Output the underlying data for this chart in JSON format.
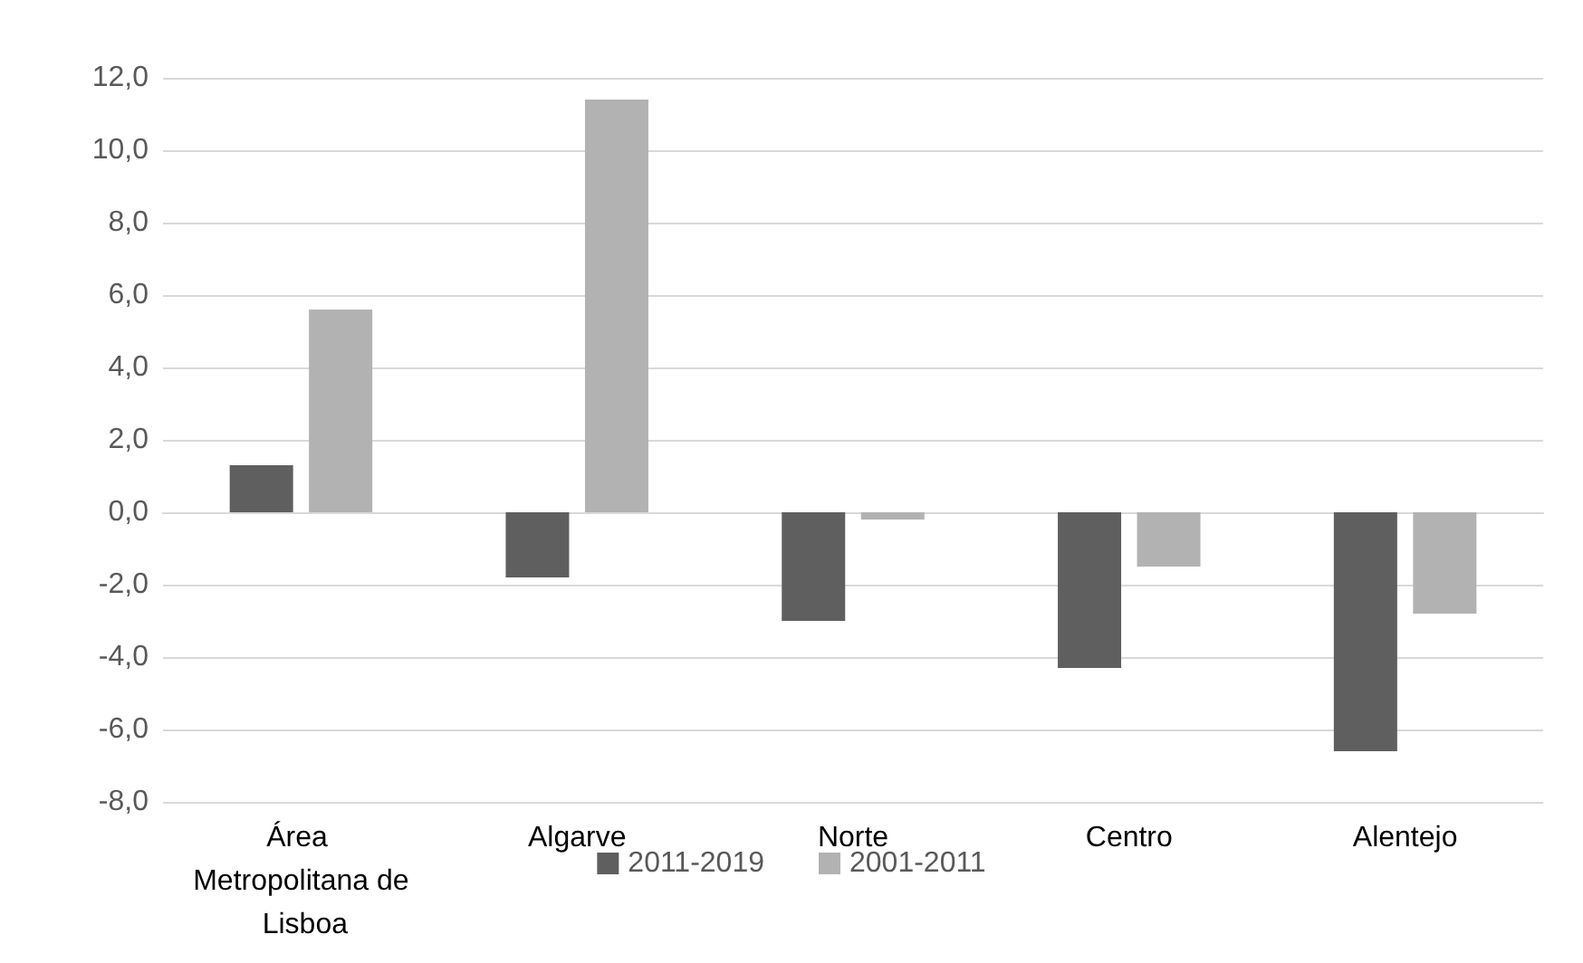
{
  "chart_data": {
    "type": "bar",
    "categories": [
      "Área Metropolitana de Lisboa",
      "Algarve",
      "Norte",
      "Centro",
      "Alentejo"
    ],
    "series": [
      {
        "name": "2011-2019",
        "color": "#5f5f5f",
        "values": [
          1.3,
          -1.8,
          -3.0,
          -4.3,
          -6.6
        ]
      },
      {
        "name": "2001-2011",
        "color": "#b2b2b2",
        "values": [
          5.6,
          11.4,
          -0.2,
          -1.5,
          -2.8
        ]
      }
    ],
    "ylim": [
      -8,
      12
    ],
    "yticks": [
      {
        "value": -8,
        "label": "-8,0"
      },
      {
        "value": -6,
        "label": "-6,0"
      },
      {
        "value": -4,
        "label": "-4,0"
      },
      {
        "value": -2,
        "label": "-2,0"
      },
      {
        "value": 0,
        "label": "0,0"
      },
      {
        "value": 2,
        "label": "2,0"
      },
      {
        "value": 4,
        "label": "4,0"
      },
      {
        "value": 6,
        "label": "6,0"
      },
      {
        "value": 8,
        "label": "8,0"
      },
      {
        "value": 10,
        "label": "10,0"
      },
      {
        "value": 12,
        "label": "12,0"
      }
    ],
    "grid": true,
    "legend": "bottom"
  }
}
